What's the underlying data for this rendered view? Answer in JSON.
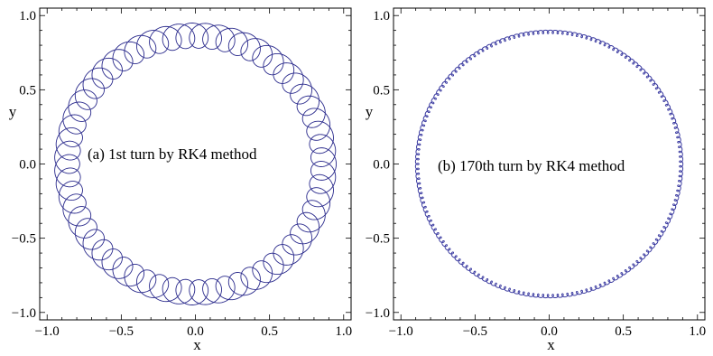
{
  "chart_data": [
    {
      "type": "line",
      "annotation": "(a) 1st turn by RK4 method",
      "xlabel": "x",
      "ylabel": "y",
      "xlim": [
        -1.05,
        1.05
      ],
      "ylim": [
        -1.05,
        1.05
      ],
      "xticks": [
        -1.0,
        -0.5,
        0.0,
        0.5,
        1.0
      ],
      "yticks": [
        -1.0,
        -0.5,
        0.0,
        0.5,
        1.0
      ],
      "xtick_labels": [
        "−1.0",
        "−0.5",
        "0.0",
        "0.5",
        "1.0"
      ],
      "ytick_labels": [
        "−1.0",
        "−0.5",
        "0.0",
        "0.5",
        "1.0"
      ],
      "grid": false,
      "line_color": "#2a2a8c",
      "trajectory": {
        "kind": "epicycle",
        "center_radius": 0.865,
        "loop_radius": 0.085,
        "loops_per_turn": 60,
        "inner_radius": 0.78,
        "outer_radius": 0.95
      }
    },
    {
      "type": "line",
      "annotation": "(b) 170th turn by RK4 method",
      "xlabel": "x",
      "ylabel": "y",
      "xlim": [
        -1.05,
        1.05
      ],
      "ylim": [
        -1.05,
        1.05
      ],
      "xticks": [
        -1.0,
        -0.5,
        0.0,
        0.5,
        1.0
      ],
      "yticks": [
        -1.0,
        -0.5,
        0.0,
        0.5,
        1.0
      ],
      "xtick_labels": [
        "−1.0",
        "−0.5",
        "0.0",
        "0.5",
        "1.0"
      ],
      "ytick_labels": [
        "−1.0",
        "−0.5",
        "0.0",
        "0.5",
        "1.0"
      ],
      "grid": false,
      "line_color": "#3a3aa0",
      "trajectory": {
        "kind": "epicycle",
        "center_radius": 0.89,
        "loop_radius": 0.012,
        "loops_per_turn": 170,
        "inner_radius": 0.878,
        "outer_radius": 0.902
      }
    }
  ]
}
